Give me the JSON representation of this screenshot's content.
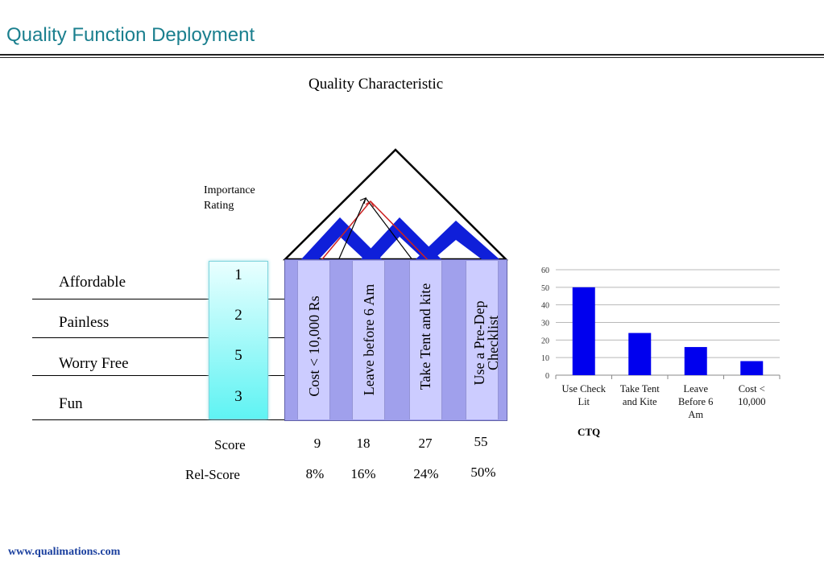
{
  "header": {
    "title": "Quality Function Deployment"
  },
  "diagram": {
    "heading": "Quality Characteristic",
    "importance_label": [
      "Importance",
      "Rating"
    ],
    "requirements": [
      {
        "label": "Affordable",
        "rating": "1"
      },
      {
        "label": "Painless",
        "rating": "2"
      },
      {
        "label": "Worry Free",
        "rating": "5"
      },
      {
        "label": "Fun",
        "rating": "3"
      }
    ],
    "characteristics": [
      {
        "lines": [
          "Cost < 10,000 Rs"
        ]
      },
      {
        "lines": [
          "Leave before 6 Am"
        ]
      },
      {
        "lines": [
          "Take Tent and kite"
        ]
      },
      {
        "lines": [
          "Use a Pre-Dep",
          "Checklist"
        ]
      }
    ],
    "score_label": "Score",
    "rel_score_label": "Rel-Score",
    "scores": [
      "9",
      "18",
      "27",
      "55"
    ],
    "rel_scores": [
      "8%",
      "16%",
      "24%",
      "50%"
    ]
  },
  "chart_caption": "CTQ",
  "chart_data": {
    "type": "bar",
    "categories": [
      "Use Check Lit",
      "Take Tent and Kite",
      "Leave Before 6 Am",
      "Cost < 10,000"
    ],
    "category_lines": [
      [
        "Use Check",
        "Lit"
      ],
      [
        "Take Tent",
        "and Kite"
      ],
      [
        "Leave",
        "Before 6",
        "Am"
      ],
      [
        "Cost <",
        "10,000"
      ]
    ],
    "values": [
      50,
      24,
      16,
      8
    ],
    "ylim": [
      0,
      60
    ],
    "yticks": [
      "0",
      "10",
      "20",
      "30",
      "40",
      "50",
      "60"
    ],
    "grid": true,
    "bar_color": "#0000ee",
    "title": "",
    "xlabel": "",
    "ylabel": ""
  },
  "footer": {
    "url": "www.qualimations.com"
  },
  "colors": {
    "title": "#1a7f8e",
    "roof_shape": "#0f1fd9",
    "matrix": "#a0a0ec",
    "rating_box": "#5ff3f3",
    "footer": "#1a3f9e"
  }
}
